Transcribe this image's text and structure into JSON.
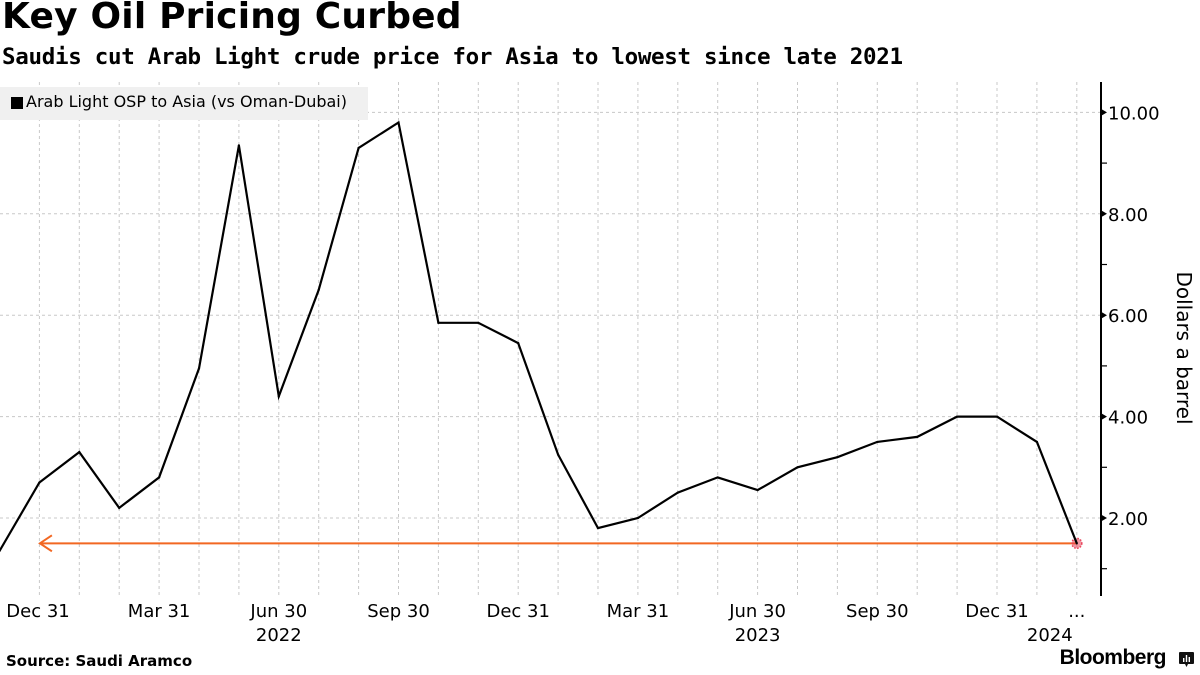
{
  "header": {
    "title": "Key Oil Pricing Curbed",
    "subtitle": "Saudis cut Arab Light crude price for Asia to lowest since late 2021"
  },
  "footer": {
    "source": "Source:  Saudi Aramco",
    "brand": "Bloomberg",
    "brand_icon": "bloomberg-chart-icon"
  },
  "colors": {
    "series": "#000000",
    "annotation": "#f26722",
    "marker": "#e8435a",
    "grid": "#c8c8c8",
    "legend_bg": "#f0f0f0"
  },
  "chart_data": {
    "type": "line",
    "title": "Key Oil Pricing Curbed",
    "subtitle": "Saudis cut Arab Light crude price for Asia to lowest since late 2021",
    "xlabel": "",
    "ylabel": "Dollars a barrel",
    "ylim": [
      0.5,
      10.5
    ],
    "y_ticks": [
      2,
      4,
      6,
      8,
      10
    ],
    "y_tick_labels": [
      "2.00",
      "4.00",
      "6.00",
      "8.00",
      "10.00"
    ],
    "y_axis_side": "right",
    "grid": true,
    "legend": {
      "placement": "top-left",
      "entries": [
        "Arab Light OSP to Asia (vs Oman-Dubai)"
      ]
    },
    "x": [
      "2021-11",
      "2021-12",
      "2022-01",
      "2022-02",
      "2022-03",
      "2022-04",
      "2022-05",
      "2022-06",
      "2022-07",
      "2022-08",
      "2022-09",
      "2022-10",
      "2022-11",
      "2022-12",
      "2023-01",
      "2023-02",
      "2023-03",
      "2023-04",
      "2023-05",
      "2023-06",
      "2023-07",
      "2023-08",
      "2023-09",
      "2023-10",
      "2023-11",
      "2023-12",
      "2024-01",
      "2024-02"
    ],
    "x_tick_labels": [
      {
        "month_index": 1,
        "label": "Dec 31",
        "year": ""
      },
      {
        "month_index": 4,
        "label": "Mar 31",
        "year": ""
      },
      {
        "month_index": 7,
        "label": "Jun 30",
        "year": "2022"
      },
      {
        "month_index": 10,
        "label": "Sep 30",
        "year": ""
      },
      {
        "month_index": 13,
        "label": "Dec 31",
        "year": ""
      },
      {
        "month_index": 16,
        "label": "Mar 31",
        "year": ""
      },
      {
        "month_index": 19,
        "label": "Jun 30",
        "year": "2023"
      },
      {
        "month_index": 22,
        "label": "Sep 30",
        "year": ""
      },
      {
        "month_index": 25,
        "label": "Dec 31",
        "year": ""
      },
      {
        "month_index": 27,
        "label": "...",
        "year": "2024"
      }
    ],
    "series": [
      {
        "name": "Arab Light OSP to Asia (vs Oman-Dubai)",
        "values": [
          1.35,
          2.7,
          3.3,
          2.2,
          2.8,
          4.95,
          9.35,
          4.4,
          6.5,
          9.3,
          9.8,
          5.85,
          5.85,
          5.45,
          3.25,
          1.8,
          2.0,
          2.5,
          2.8,
          2.55,
          3.0,
          3.2,
          3.5,
          3.6,
          4.0,
          4.0,
          3.5,
          1.5
        ]
      }
    ],
    "annotations": [
      {
        "type": "arrow-line",
        "value": 1.5,
        "from_month_index": 27,
        "to_month_index": 1,
        "note": "lowest since late 2021"
      },
      {
        "type": "marker",
        "month_index": 27,
        "value": 1.5
      }
    ]
  }
}
